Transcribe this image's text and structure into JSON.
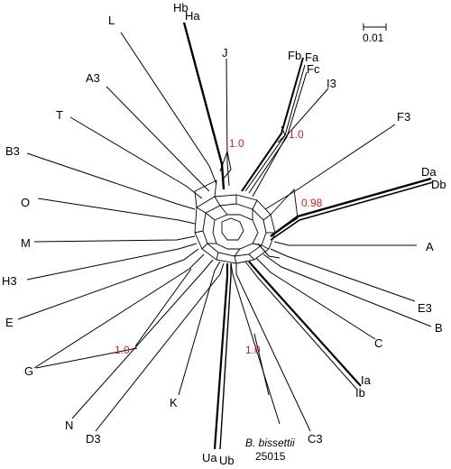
{
  "scale_bar": {
    "label": "0.01"
  },
  "colors": {
    "support": "#e0201b",
    "edge": "#000000"
  },
  "taxa": {
    "Hb": "Hb",
    "Ha": "Ha",
    "L": "L",
    "J": "J",
    "Fb": "Fb",
    "Fa": "Fa",
    "Fc": "Fc",
    "I3": "I3",
    "A3": "A3",
    "T": "T",
    "F3": "F3",
    "B3": "B3",
    "Da": "Da",
    "Db": "Db",
    "O": "O",
    "M": "M",
    "A": "A",
    "H3": "H3",
    "E3": "E3",
    "E": "E",
    "B": "B",
    "C": "C",
    "G": "G",
    "Ia": "Ia",
    "Ib": "Ib",
    "K": "K",
    "N": "N",
    "D3": "D3",
    "C3": "C3",
    "Ua": "Ua",
    "Ub": "Ub"
  },
  "species_label": {
    "name": "B. bissettii",
    "strain": "25015"
  },
  "support_values": {
    "j_clade": "1.0",
    "f_clade": "1.0",
    "d_clade": "0.98",
    "g_clade": "1.0",
    "bissettii_clade": "1.0"
  }
}
